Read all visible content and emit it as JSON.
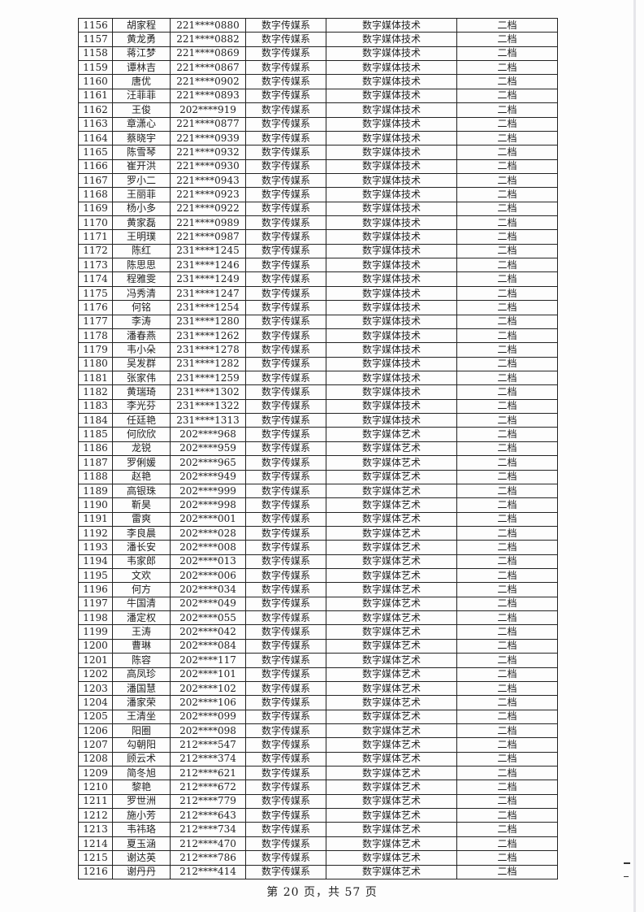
{
  "rows": [
    [
      "1156",
      "胡家程",
      "221****0880",
      "数字传媒系",
      "数字媒体技术",
      "二档"
    ],
    [
      "1157",
      "黄龙勇",
      "221****0882",
      "数字传媒系",
      "数字媒体技术",
      "二档"
    ],
    [
      "1158",
      "蒋江梦",
      "221****0869",
      "数字传媒系",
      "数字媒体技术",
      "二档"
    ],
    [
      "1159",
      "谭林吉",
      "221****0867",
      "数字传媒系",
      "数字媒体技术",
      "二档"
    ],
    [
      "1160",
      "唐优",
      "221****0902",
      "数字传媒系",
      "数字媒体技术",
      "二档"
    ],
    [
      "1161",
      "汪菲菲",
      "221****0893",
      "数字传媒系",
      "数字媒体技术",
      "二档"
    ],
    [
      "1162",
      "王俊",
      "202****919",
      "数字传媒系",
      "数字媒体技术",
      "二档"
    ],
    [
      "1163",
      "章潇心",
      "221****0877",
      "数字传媒系",
      "数字媒体技术",
      "二档"
    ],
    [
      "1164",
      "蔡晓宇",
      "221****0939",
      "数字传媒系",
      "数字媒体技术",
      "二档"
    ],
    [
      "1165",
      "陈雪琴",
      "221****0932",
      "数字传媒系",
      "数字媒体技术",
      "二档"
    ],
    [
      "1166",
      "崔开洪",
      "221****0930",
      "数字传媒系",
      "数字媒体技术",
      "二档"
    ],
    [
      "1167",
      "罗小二",
      "221****0943",
      "数字传媒系",
      "数字媒体技术",
      "二档"
    ],
    [
      "1168",
      "王丽菲",
      "221****0923",
      "数字传媒系",
      "数字媒体技术",
      "二档"
    ],
    [
      "1169",
      "杨小多",
      "221****0922",
      "数字传媒系",
      "数字媒体技术",
      "二档"
    ],
    [
      "1170",
      "黄家磊",
      "221****0989",
      "数字传媒系",
      "数字媒体技术",
      "二档"
    ],
    [
      "1171",
      "王明璞",
      "221****0987",
      "数字传媒系",
      "数字媒体技术",
      "二档"
    ],
    [
      "1172",
      "陈红",
      "231****1245",
      "数字传媒系",
      "数字媒体技术",
      "二档"
    ],
    [
      "1173",
      "陈思思",
      "231****1246",
      "数字传媒系",
      "数字媒体技术",
      "二档"
    ],
    [
      "1174",
      "程雅雯",
      "231****1249",
      "数字传媒系",
      "数字媒体技术",
      "二档"
    ],
    [
      "1175",
      "冯秀清",
      "231****1247",
      "数字传媒系",
      "数字媒体技术",
      "二档"
    ],
    [
      "1176",
      "何铭",
      "231****1254",
      "数字传媒系",
      "数字媒体技术",
      "二档"
    ],
    [
      "1177",
      "李涛",
      "231****1280",
      "数字传媒系",
      "数字媒体技术",
      "二档"
    ],
    [
      "1178",
      "潘春燕",
      "231****1262",
      "数字传媒系",
      "数字媒体技术",
      "二档"
    ],
    [
      "1179",
      "韦小朵",
      "231****1278",
      "数字传媒系",
      "数字媒体技术",
      "二档"
    ],
    [
      "1180",
      "吴发群",
      "231****1282",
      "数字传媒系",
      "数字媒体技术",
      "二档"
    ],
    [
      "1181",
      "张家伟",
      "231****1259",
      "数字传媒系",
      "数字媒体技术",
      "二档"
    ],
    [
      "1182",
      "黄瑞琦",
      "231****1302",
      "数字传媒系",
      "数字媒体技术",
      "二档"
    ],
    [
      "1183",
      "李光芬",
      "231****1322",
      "数字传媒系",
      "数字媒体技术",
      "二档"
    ],
    [
      "1184",
      "任廷艳",
      "231****1313",
      "数字传媒系",
      "数字媒体技术",
      "二档"
    ],
    [
      "1185",
      "何欣欣",
      "202****968",
      "数字传媒系",
      "数字媒体艺术",
      "二档"
    ],
    [
      "1186",
      "龙锐",
      "202****959",
      "数字传媒系",
      "数字媒体艺术",
      "二档"
    ],
    [
      "1187",
      "罗俐媛",
      "202****965",
      "数字传媒系",
      "数字媒体艺术",
      "二档"
    ],
    [
      "1188",
      "赵艳",
      "202****949",
      "数字传媒系",
      "数字媒体艺术",
      "二档"
    ],
    [
      "1189",
      "高银珠",
      "202****999",
      "数字传媒系",
      "数字媒体艺术",
      "二档"
    ],
    [
      "1190",
      "靳昊",
      "202****998",
      "数字传媒系",
      "数字媒体艺术",
      "二档"
    ],
    [
      "1191",
      "雷爽",
      "202****001",
      "数字传媒系",
      "数字媒体艺术",
      "二档"
    ],
    [
      "1192",
      "李良晨",
      "202****028",
      "数字传媒系",
      "数字媒体艺术",
      "二档"
    ],
    [
      "1193",
      "潘长安",
      "202****008",
      "数字传媒系",
      "数字媒体艺术",
      "二档"
    ],
    [
      "1194",
      "韦家郎",
      "202****013",
      "数字传媒系",
      "数字媒体艺术",
      "二档"
    ],
    [
      "1195",
      "文欢",
      "202****006",
      "数字传媒系",
      "数字媒体艺术",
      "二档"
    ],
    [
      "1196",
      "何方",
      "202****034",
      "数字传媒系",
      "数字媒体艺术",
      "二档"
    ],
    [
      "1197",
      "牛国清",
      "202****049",
      "数字传媒系",
      "数字媒体艺术",
      "二档"
    ],
    [
      "1198",
      "潘定权",
      "202****055",
      "数字传媒系",
      "数字媒体艺术",
      "二档"
    ],
    [
      "1199",
      "王涛",
      "202****042",
      "数字传媒系",
      "数字媒体艺术",
      "二档"
    ],
    [
      "1200",
      "曹琳",
      "202****084",
      "数字传媒系",
      "数字媒体艺术",
      "二档"
    ],
    [
      "1201",
      "陈容",
      "202****117",
      "数字传媒系",
      "数字媒体艺术",
      "二档"
    ],
    [
      "1202",
      "高凤珍",
      "202****101",
      "数字传媒系",
      "数字媒体艺术",
      "二档"
    ],
    [
      "1203",
      "潘国慧",
      "202****102",
      "数字传媒系",
      "数字媒体艺术",
      "二档"
    ],
    [
      "1204",
      "潘家荣",
      "202****106",
      "数字传媒系",
      "数字媒体艺术",
      "二档"
    ],
    [
      "1205",
      "王清坐",
      "202****099",
      "数字传媒系",
      "数字媒体艺术",
      "二档"
    ],
    [
      "1206",
      "阳圈",
      "202****098",
      "数字传媒系",
      "数字媒体艺术",
      "二档"
    ],
    [
      "1207",
      "勾朝阳",
      "212****547",
      "数字传媒系",
      "数字媒体艺术",
      "二档"
    ],
    [
      "1208",
      "顾云术",
      "212****374",
      "数字传媒系",
      "数字媒体艺术",
      "二档"
    ],
    [
      "1209",
      "简冬旭",
      "212****621",
      "数字传媒系",
      "数字媒体艺术",
      "二档"
    ],
    [
      "1210",
      "黎艳",
      "212****672",
      "数字传媒系",
      "数字媒体艺术",
      "二档"
    ],
    [
      "1211",
      "罗世洲",
      "212****779",
      "数字传媒系",
      "数字媒体艺术",
      "二档"
    ],
    [
      "1212",
      "施小芳",
      "212****643",
      "数字传媒系",
      "数字媒体艺术",
      "二档"
    ],
    [
      "1213",
      "韦祎珞",
      "212****734",
      "数字传媒系",
      "数字媒体艺术",
      "二档"
    ],
    [
      "1214",
      "夏玉涵",
      "212****470",
      "数字传媒系",
      "数字媒体艺术",
      "二档"
    ],
    [
      "1215",
      "谢达英",
      "212****786",
      "数字传媒系",
      "数字媒体艺术",
      "二档"
    ],
    [
      "1216",
      "谢丹丹",
      "212****414",
      "数字传媒系",
      "数字媒体艺术",
      "二档"
    ]
  ],
  "footer": {
    "page_label": "第 20 页，共 57 页"
  }
}
